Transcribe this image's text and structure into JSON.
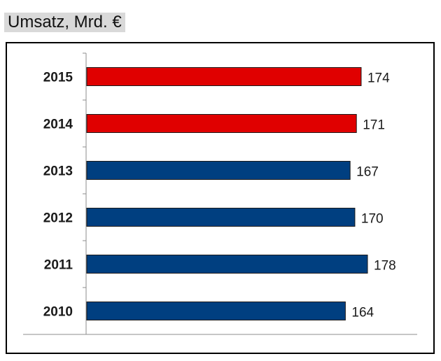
{
  "title": "Umsatz, Mrd. €",
  "chart_data": {
    "type": "bar",
    "orientation": "horizontal",
    "categories": [
      "2015",
      "2014",
      "2013",
      "2012",
      "2011",
      "2010"
    ],
    "values": [
      174,
      171,
      167,
      170,
      178,
      164
    ],
    "bar_colors": [
      "#e00000",
      "#e00000",
      "#003f80",
      "#003f80",
      "#003f80",
      "#003f80"
    ],
    "data_labels": [
      "174",
      "171",
      "167",
      "170",
      "178",
      "164"
    ],
    "xlim": [
      0,
      178
    ],
    "grid": false,
    "legend": "none"
  }
}
